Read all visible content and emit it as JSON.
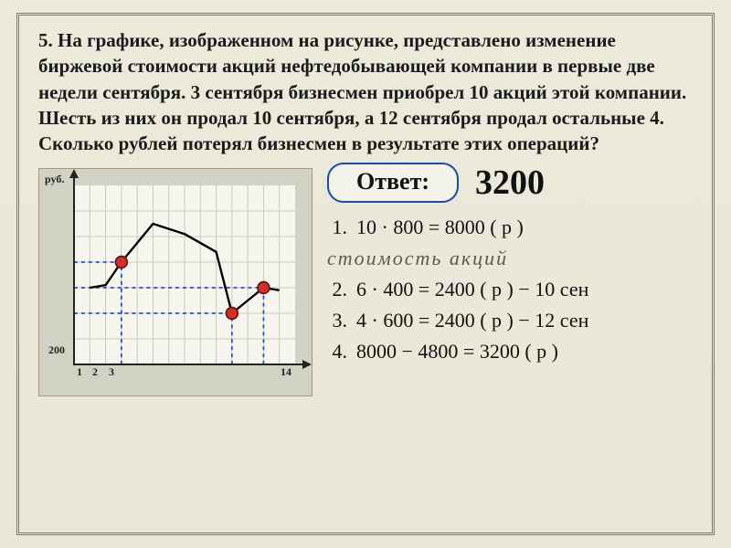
{
  "problem_text": "5. На графике, изображенном на рисунке, представлено изменение биржевой стоимости акций нефтедобывающей компании в первые две недели сентября. 3 сентября бизнесмен приобрел 10 акций этой компании. Шесть из них он продал 10 сентября, а 12 сентября продал остальные 4. Сколько рублей потерял бизнесмен в результате этих операций?",
  "answer_label": "Ответ:",
  "answer_value": "3200",
  "calc": {
    "line1": "10 · 800 = 8000 ( р )",
    "note": "стоимость   акций",
    "line2": "6 · 400 = 2400 ( р ) − 10 сен",
    "line3": "4 · 600 = 2400 ( р ) − 12 сен",
    "line4": "8000 − 4800 = 3200 ( р )"
  },
  "chart": {
    "type": "line",
    "y_axis_label": "руб.",
    "y_tick_label": "200",
    "x_tick_labels": [
      "1",
      "2",
      "3",
      "14"
    ],
    "background_color": "#f6f6ee",
    "panel_color": "#d2d2c4",
    "grid_color": "#c9c9bb",
    "axis_color": "#222222",
    "line_color": "#000000",
    "dashed_color": "#2a4fbf",
    "dot_fill": "#d0302a",
    "dot_border": "#5a1410",
    "grid_cols": 14,
    "grid_rows": 7,
    "xlim": [
      0,
      14
    ],
    "ylim": [
      0,
      1400
    ],
    "y_step": 200,
    "series": [
      {
        "x": 1,
        "y": 600
      },
      {
        "x": 2,
        "y": 620
      },
      {
        "x": 3,
        "y": 800
      },
      {
        "x": 5,
        "y": 1100
      },
      {
        "x": 7,
        "y": 1020
      },
      {
        "x": 9,
        "y": 880
      },
      {
        "x": 10,
        "y": 400
      },
      {
        "x": 12,
        "y": 600
      },
      {
        "x": 13,
        "y": 580
      }
    ],
    "highlight_points": [
      {
        "x": 3,
        "y": 800
      },
      {
        "x": 10,
        "y": 400
      },
      {
        "x": 12,
        "y": 600
      }
    ],
    "dashed_guides": [
      {
        "type": "h",
        "y": 800,
        "x_to": 3
      },
      {
        "type": "v",
        "x": 3,
        "y_to": 800
      },
      {
        "type": "h",
        "y": 600,
        "x_to": 12
      },
      {
        "type": "v",
        "x": 12,
        "y_to": 600
      },
      {
        "type": "h",
        "y": 400,
        "x_to": 10
      },
      {
        "type": "v",
        "x": 10,
        "y_to": 400
      }
    ]
  }
}
